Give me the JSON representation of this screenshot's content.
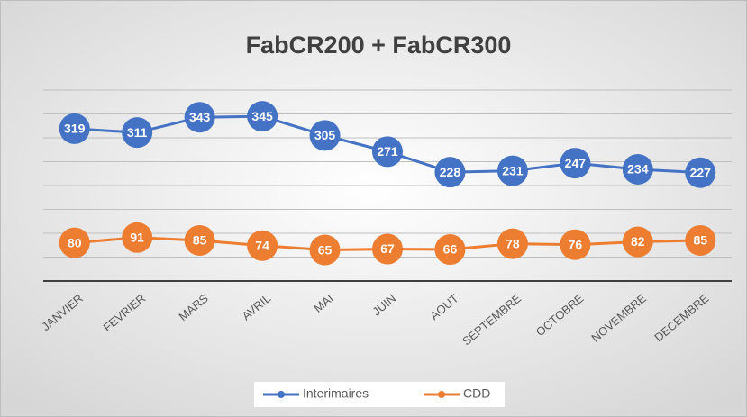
{
  "chart_data": {
    "type": "line",
    "title": "FabCR200 + FabCR300",
    "categories": [
      "JANVIER",
      "FEVRIER",
      "MARS",
      "AVRIL",
      "MAI",
      "JUIN",
      "AOUT",
      "SEPTEMBRE",
      "OCTOBRE",
      "NOVEMBRE",
      "DECEMBRE"
    ],
    "series": [
      {
        "name": "Interimaires",
        "color": "#4472c4",
        "values": [
          319,
          311,
          343,
          345,
          305,
          271,
          228,
          231,
          247,
          234,
          227
        ]
      },
      {
        "name": "CDD",
        "color": "#ed7d31",
        "values": [
          80,
          91,
          85,
          74,
          65,
          67,
          66,
          78,
          76,
          82,
          85
        ]
      }
    ],
    "ylim": [
      0,
      400
    ],
    "yticks": [
      0,
      50,
      100,
      150,
      200,
      250,
      300,
      350,
      400
    ],
    "grid": true,
    "legend": "bottom"
  }
}
